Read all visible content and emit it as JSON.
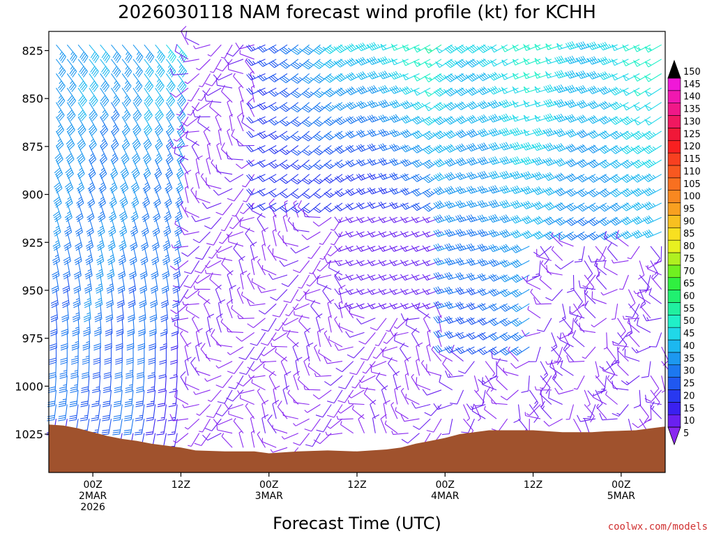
{
  "chart_data": {
    "type": "wind barb time-height",
    "title": "2026030118 NAM forecast wind profile (kt) for KCHH",
    "xlabel": "Forecast Time (UTC)",
    "ylabel": "",
    "y_reversed": true,
    "y_ticks": [
      825,
      850,
      875,
      900,
      925,
      950,
      975,
      1000,
      1025
    ],
    "x_ticks": [
      {
        "line1": "00Z",
        "line2": "2MAR",
        "line3": "2026",
        "hour": 6
      },
      {
        "line1": "12Z",
        "line2": "",
        "line3": "",
        "hour": 18
      },
      {
        "line1": "00Z",
        "line2": "3MAR",
        "line3": "",
        "hour": 30
      },
      {
        "line1": "12Z",
        "line2": "",
        "line3": "",
        "hour": 42
      },
      {
        "line1": "00Z",
        "line2": "4MAR",
        "line3": "",
        "hour": 54
      },
      {
        "line1": "12Z",
        "line2": "",
        "line3": "",
        "hour": 66
      },
      {
        "line1": "00Z",
        "line2": "5MAR",
        "line3": "",
        "hour": 78
      }
    ],
    "x_range_hours": [
      0,
      84
    ],
    "y_range_hpa": [
      815,
      1045
    ],
    "colorbar": {
      "levels": [
        5,
        10,
        15,
        20,
        25,
        30,
        35,
        40,
        45,
        50,
        55,
        60,
        65,
        70,
        75,
        80,
        85,
        90,
        95,
        100,
        105,
        110,
        115,
        120,
        125,
        130,
        135,
        140,
        145,
        150
      ],
      "colors": [
        "#8a28f0",
        "#6a20f0",
        "#3a20f0",
        "#2838f0",
        "#2058f0",
        "#1c78f0",
        "#1c98f0",
        "#1cb8f0",
        "#20d8e8",
        "#20f0c8",
        "#20f0a0",
        "#20f070",
        "#30f040",
        "#70f020",
        "#b0f020",
        "#e8f020",
        "#f8e020",
        "#f8c020",
        "#f8a020",
        "#f88820",
        "#f87020",
        "#f85820",
        "#f84020",
        "#f82020",
        "#f01838",
        "#f01860",
        "#f01888",
        "#f018b0",
        "#f018d8",
        "#f018f8"
      ]
    },
    "surface_pressure_hpa": [
      {
        "hour": 0,
        "p": 1020
      },
      {
        "hour": 2,
        "p": 1020.5
      },
      {
        "hour": 4,
        "p": 1022
      },
      {
        "hour": 6,
        "p": 1024
      },
      {
        "hour": 8,
        "p": 1026
      },
      {
        "hour": 10,
        "p": 1027.5
      },
      {
        "hour": 12,
        "p": 1028.5
      },
      {
        "hour": 14,
        "p": 1030
      },
      {
        "hour": 16,
        "p": 1031
      },
      {
        "hour": 18,
        "p": 1032
      },
      {
        "hour": 20,
        "p": 1033.5
      },
      {
        "hour": 24,
        "p": 1034
      },
      {
        "hour": 28,
        "p": 1034
      },
      {
        "hour": 30,
        "p": 1035
      },
      {
        "hour": 34,
        "p": 1034
      },
      {
        "hour": 38,
        "p": 1033.5
      },
      {
        "hour": 42,
        "p": 1034
      },
      {
        "hour": 46,
        "p": 1033
      },
      {
        "hour": 48,
        "p": 1032
      },
      {
        "hour": 50,
        "p": 1030
      },
      {
        "hour": 52,
        "p": 1028.5
      },
      {
        "hour": 54,
        "p": 1027
      },
      {
        "hour": 56,
        "p": 1025
      },
      {
        "hour": 58,
        "p": 1024
      },
      {
        "hour": 60,
        "p": 1023
      },
      {
        "hour": 62,
        "p": 1023
      },
      {
        "hour": 66,
        "p": 1023
      },
      {
        "hour": 68,
        "p": 1023.5
      },
      {
        "hour": 70,
        "p": 1024
      },
      {
        "hour": 74,
        "p": 1024
      },
      {
        "hour": 76,
        "p": 1023.5
      },
      {
        "hour": 80,
        "p": 1023
      },
      {
        "hour": 82,
        "p": 1022
      },
      {
        "hour": 84,
        "p": 1021
      }
    ],
    "surface_fill": "#a0522d",
    "wind_regimes": [
      {
        "hours": [
          0,
          18
        ],
        "levels": "all",
        "speed_kt": [
          25,
          35
        ],
        "direction_deg": 190
      },
      {
        "hours": [
          18,
          54
        ],
        "levels": "925-1035",
        "speed_kt": [
          5,
          15
        ],
        "direction_deg": "variable"
      },
      {
        "hours": [
          30,
          84
        ],
        "levels": "825-900",
        "speed_kt": [
          25,
          60
        ],
        "direction_deg": 240
      },
      {
        "hours": [
          54,
          84
        ],
        "levels": "900-975",
        "speed_kt": [
          30,
          50
        ],
        "direction_deg": 240
      },
      {
        "hours": [
          66,
          84
        ],
        "levels": "925-1025",
        "speed_kt": [
          5,
          15
        ],
        "direction_deg": "variable"
      }
    ]
  },
  "credit": "coolwx.com/models"
}
